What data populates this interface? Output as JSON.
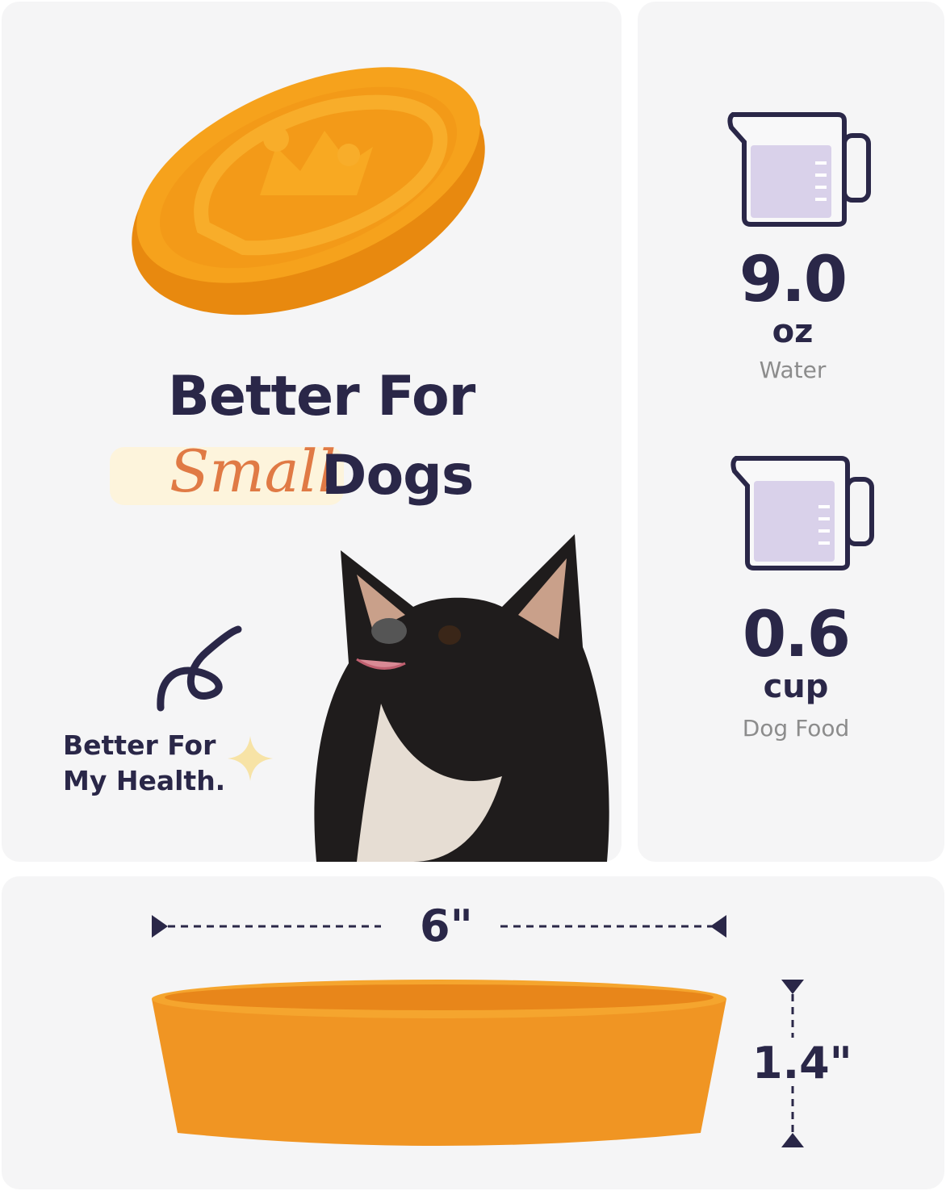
{
  "headline": {
    "line1": "Better For",
    "highlight": "Small",
    "line2_rest": "Dogs"
  },
  "badge": {
    "text_line1": "Better For",
    "text_line2": "My Health."
  },
  "water": {
    "value": "9.0",
    "unit": "oz",
    "label": "Water",
    "icon": "measuring-cup-icon"
  },
  "food": {
    "value": "0.6",
    "unit": "cup",
    "label": "Dog Food",
    "icon": "measuring-cup-icon"
  },
  "dimensions": {
    "width": "6\"",
    "height": "1.4\""
  },
  "colors": {
    "navy": "#2a2748",
    "orange_text": "#e07a45",
    "bowl": "#f29a1e",
    "cup_fill": "#d9d1ea",
    "highlight": "#fdf4dc"
  }
}
